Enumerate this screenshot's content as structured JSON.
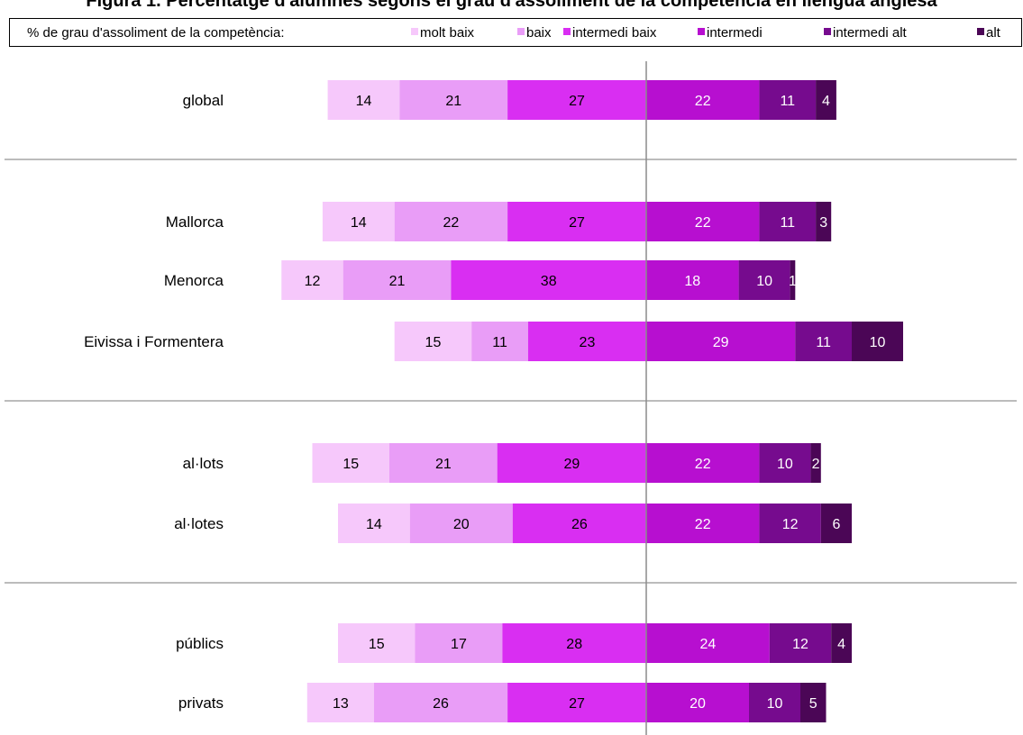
{
  "chart_data": {
    "type": "bar",
    "orientation": "horizontal",
    "stacked": "diverging",
    "title": "Figura 1. Percentatge d'alumnes segons el grau d'assoliment de la competència en llengua anglesa",
    "legend_title": "% de grau d'assoliment de la competència:",
    "legend_position": "top",
    "categories": [
      "global",
      "Mallorca",
      "Menorca",
      "Eivissa i Formentera",
      "al·lots",
      "al·lotes",
      "públics",
      "privats"
    ],
    "groups": [
      [
        "global"
      ],
      [
        "Mallorca",
        "Menorca",
        "Eivissa i Formentera"
      ],
      [
        "al·lots",
        "al·lotes"
      ],
      [
        "públics",
        "privats"
      ]
    ],
    "series": [
      {
        "name": "molt baix",
        "color": "#f6c8fb",
        "side": "left",
        "values": [
          14,
          14,
          12,
          15,
          15,
          14,
          15,
          13
        ]
      },
      {
        "name": "baix",
        "color": "#e99df7",
        "side": "left",
        "values": [
          21,
          22,
          21,
          11,
          21,
          20,
          17,
          26
        ]
      },
      {
        "name": "intermedi baix",
        "color": "#d92ef2",
        "side": "left",
        "values": [
          27,
          27,
          38,
          23,
          29,
          26,
          28,
          27
        ]
      },
      {
        "name": "intermedi",
        "color": "#b70fd0",
        "side": "right",
        "values": [
          22,
          22,
          18,
          29,
          22,
          22,
          24,
          20
        ]
      },
      {
        "name": "intermedi alt",
        "color": "#760b8e",
        "side": "right",
        "values": [
          11,
          11,
          10,
          11,
          10,
          12,
          12,
          10
        ]
      },
      {
        "name": "alt",
        "color": "#4b0656",
        "side": "right",
        "values": [
          4,
          3,
          1,
          10,
          2,
          6,
          4,
          5
        ]
      }
    ],
    "label_colors": [
      "#000000",
      "#000000",
      "#000000",
      "#ffffff",
      "#ffffff",
      "#ffffff"
    ],
    "grid": false,
    "center_line": true
  }
}
